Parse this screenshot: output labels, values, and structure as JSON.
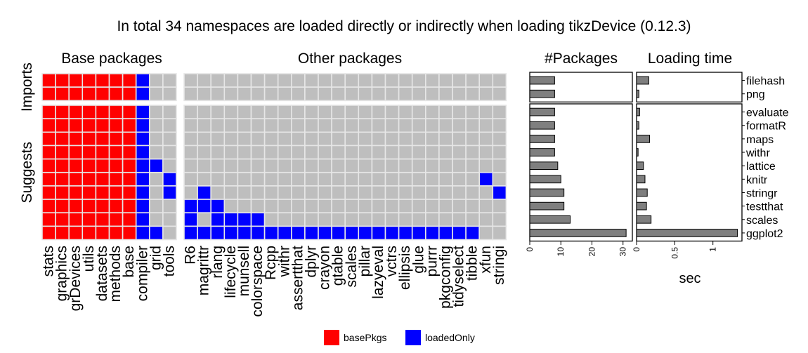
{
  "chart_data": {
    "type": "heatmap",
    "title": "In total 34 namespaces are loaded directly or indirectly when loading tikzDevice (0.12.3)",
    "panels": {
      "base_title": "Base packages",
      "other_title": "Other packages",
      "npkg_title": "#Packages",
      "time_title": "Loading time"
    },
    "groups": [
      {
        "label": "Imports",
        "rows": [
          "filehash",
          "png"
        ]
      },
      {
        "label": "Suggests",
        "rows": [
          "evaluate",
          "formatR",
          "maps",
          "withr",
          "lattice",
          "knitr",
          "stringr",
          "testthat",
          "scales",
          "ggplot2"
        ]
      }
    ],
    "base_columns": [
      "stats",
      "graphics",
      "grDevices",
      "utils",
      "datasets",
      "methods",
      "base",
      "compiler",
      "grid",
      "tools"
    ],
    "other_columns": [
      "R6",
      "magrittr",
      "rlang",
      "lifecycle",
      "munsell",
      "colorspace",
      "Rcpp",
      "withr",
      "assertthat",
      "dplyr",
      "crayon",
      "gtable",
      "scales",
      "pillar",
      "lazyeval",
      "vctrs",
      "ellipsis",
      "glue",
      "purrr",
      "pkgconfig",
      "tidyselect",
      "tibble",
      "xfun",
      "stringi"
    ],
    "base_matrix": [
      [
        1,
        1,
        1,
        1,
        1,
        1,
        1,
        2,
        0,
        0
      ],
      [
        1,
        1,
        1,
        1,
        1,
        1,
        1,
        2,
        0,
        0
      ],
      [
        1,
        1,
        1,
        1,
        1,
        1,
        1,
        2,
        0,
        0
      ],
      [
        1,
        1,
        1,
        1,
        1,
        1,
        1,
        2,
        0,
        0
      ],
      [
        1,
        1,
        1,
        1,
        1,
        1,
        1,
        2,
        0,
        0
      ],
      [
        1,
        1,
        1,
        1,
        1,
        1,
        1,
        2,
        0,
        0
      ],
      [
        1,
        1,
        1,
        1,
        1,
        1,
        1,
        2,
        2,
        0
      ],
      [
        1,
        1,
        1,
        1,
        1,
        1,
        1,
        2,
        0,
        2
      ],
      [
        1,
        1,
        1,
        1,
        1,
        1,
        1,
        2,
        0,
        2
      ],
      [
        1,
        1,
        1,
        1,
        1,
        1,
        1,
        2,
        0,
        0
      ],
      [
        1,
        1,
        1,
        1,
        1,
        1,
        1,
        2,
        0,
        0
      ],
      [
        1,
        1,
        1,
        1,
        1,
        1,
        1,
        2,
        2,
        0
      ]
    ],
    "other_matrix": [
      [
        0,
        0,
        0,
        0,
        0,
        0,
        0,
        0,
        0,
        0,
        0,
        0,
        0,
        0,
        0,
        0,
        0,
        0,
        0,
        0,
        0,
        0,
        0,
        0
      ],
      [
        0,
        0,
        0,
        0,
        0,
        0,
        0,
        0,
        0,
        0,
        0,
        0,
        0,
        0,
        0,
        0,
        0,
        0,
        0,
        0,
        0,
        0,
        0,
        0
      ],
      [
        0,
        0,
        0,
        0,
        0,
        0,
        0,
        0,
        0,
        0,
        0,
        0,
        0,
        0,
        0,
        0,
        0,
        0,
        0,
        0,
        0,
        0,
        0,
        0
      ],
      [
        0,
        0,
        0,
        0,
        0,
        0,
        0,
        0,
        0,
        0,
        0,
        0,
        0,
        0,
        0,
        0,
        0,
        0,
        0,
        0,
        0,
        0,
        0,
        0
      ],
      [
        0,
        0,
        0,
        0,
        0,
        0,
        0,
        0,
        0,
        0,
        0,
        0,
        0,
        0,
        0,
        0,
        0,
        0,
        0,
        0,
        0,
        0,
        0,
        0
      ],
      [
        0,
        0,
        0,
        0,
        0,
        0,
        0,
        0,
        0,
        0,
        0,
        0,
        0,
        0,
        0,
        0,
        0,
        0,
        0,
        0,
        0,
        0,
        0,
        0
      ],
      [
        0,
        0,
        0,
        0,
        0,
        0,
        0,
        0,
        0,
        0,
        0,
        0,
        0,
        0,
        0,
        0,
        0,
        0,
        0,
        0,
        0,
        0,
        0,
        0
      ],
      [
        0,
        0,
        0,
        0,
        0,
        0,
        0,
        0,
        0,
        0,
        0,
        0,
        0,
        0,
        0,
        0,
        0,
        0,
        0,
        0,
        0,
        0,
        2,
        0
      ],
      [
        0,
        2,
        0,
        0,
        0,
        0,
        0,
        0,
        0,
        0,
        0,
        0,
        0,
        0,
        0,
        0,
        0,
        0,
        0,
        0,
        0,
        0,
        0,
        2
      ],
      [
        2,
        2,
        2,
        0,
        0,
        0,
        0,
        0,
        0,
        0,
        0,
        0,
        0,
        0,
        0,
        0,
        0,
        0,
        0,
        0,
        0,
        0,
        0,
        0
      ],
      [
        2,
        0,
        2,
        2,
        2,
        2,
        0,
        0,
        0,
        0,
        0,
        0,
        0,
        0,
        0,
        0,
        0,
        0,
        0,
        0,
        0,
        0,
        0,
        0
      ],
      [
        2,
        2,
        2,
        2,
        2,
        2,
        2,
        2,
        2,
        2,
        2,
        2,
        2,
        2,
        2,
        2,
        2,
        2,
        2,
        2,
        2,
        2,
        0,
        0
      ]
    ],
    "n_packages": {
      "values": [
        8,
        8,
        8,
        8,
        8,
        8,
        9,
        10,
        11,
        11,
        13,
        31
      ],
      "xlim": [
        0,
        33
      ],
      "ticks": [
        "0",
        "10",
        "20",
        "30"
      ],
      "tick_values": [
        0,
        10,
        20,
        30
      ]
    },
    "loading_time": {
      "values": [
        0.16,
        0.03,
        0.04,
        0.03,
        0.17,
        0.02,
        0.09,
        0.11,
        0.14,
        0.13,
        0.19,
        1.32
      ],
      "xlim": [
        0,
        1.38
      ],
      "ticks": [
        "0",
        "0.5",
        "1"
      ],
      "tick_values": [
        0,
        0.5,
        1
      ],
      "xlabel": "sec"
    },
    "legend": [
      {
        "label": "basePkgs",
        "color": "#ff0000"
      },
      {
        "label": "loadedOnly",
        "color": "#0000ff"
      }
    ],
    "colors": {
      "none": "#bebebe",
      "basePkgs": "#ff0000",
      "loadedOnly": "#0000ff",
      "bar": "#7f7f7f",
      "cell_border": "#e6e6e6"
    },
    "legend_position": "bottom"
  }
}
